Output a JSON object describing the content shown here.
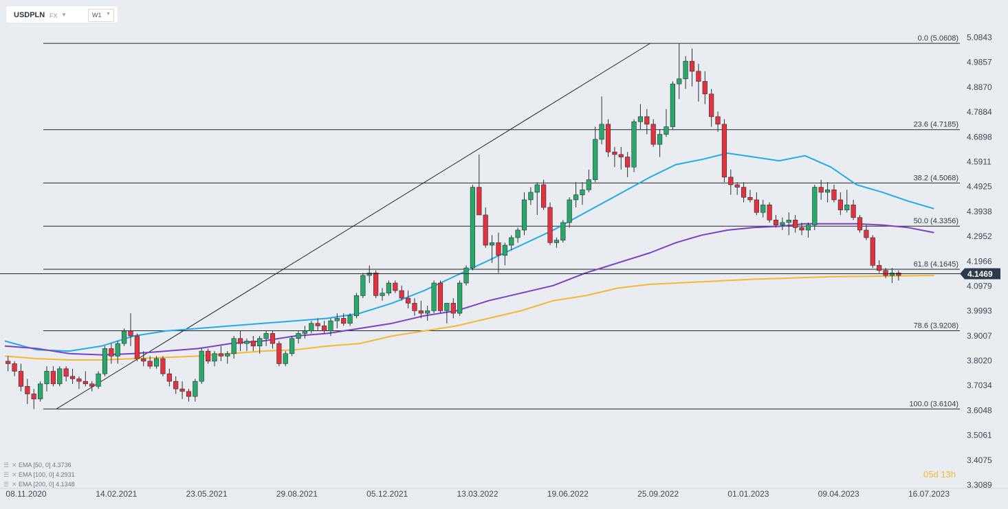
{
  "header": {
    "symbol": "USDPLN",
    "market": "FX",
    "timeframe": "W1"
  },
  "timer": {
    "value": "05d 13h"
  },
  "indicators": [
    {
      "label": "EMA [50,  0]",
      "value": "4.3736",
      "color": "#22a9e8"
    },
    {
      "label": "EMA [100,  0]",
      "value": "4.2931",
      "color": "#7b3fc4"
    },
    {
      "label": "EMA [200,  0]",
      "value": "4.1348",
      "color": "#f5b731"
    }
  ],
  "chart_data": {
    "type": "candlestick",
    "title": "",
    "current_price": {
      "label": "4.1469",
      "value": 4.1469
    },
    "y_axis": {
      "ticks": [
        "5.0843",
        "4.9857",
        "4.8870",
        "4.7884",
        "4.6898",
        "4.5911",
        "4.4925",
        "4.3938",
        "4.2952",
        "4.1966",
        "4.0979",
        "3.9993",
        "3.9007",
        "3.8020",
        "3.7034",
        "3.6048",
        "3.5061",
        "3.4075",
        "3.3089"
      ],
      "ylim": [
        3.3089,
        5.0843
      ]
    },
    "x_axis": {
      "ticks": [
        "08.11.2020",
        "14.02.2021",
        "23.05.2021",
        "29.08.2021",
        "05.12.2021",
        "13.03.2022",
        "19.06.2022",
        "25.09.2022",
        "01.01.2023",
        "09.04.2023",
        "16.07.2023"
      ]
    },
    "fibonacci": {
      "levels": [
        {
          "label": "0.0 (5.0608)",
          "value": 5.0608
        },
        {
          "label": "23.6 (4.7185)",
          "value": 4.7185
        },
        {
          "label": "38.2 (4.5068)",
          "value": 4.5068
        },
        {
          "label": "50.0 (4.3356)",
          "value": 4.3356
        },
        {
          "label": "61.8 (4.1645)",
          "value": 4.1645
        },
        {
          "label": "78.6 (3.9208)",
          "value": 3.9208
        },
        {
          "label": "100.0 (3.6104)",
          "value": 3.6104
        }
      ],
      "trend_line": {
        "from": {
          "week": 8,
          "value": 3.6104
        },
        "to": {
          "week": 100,
          "value": 5.0608
        }
      }
    },
    "candles": [
      [
        3.8,
        3.82,
        3.76,
        3.79
      ],
      [
        3.79,
        3.8,
        3.74,
        3.76
      ],
      [
        3.76,
        3.79,
        3.68,
        3.7
      ],
      [
        3.7,
        3.73,
        3.63,
        3.67
      ],
      [
        3.67,
        3.69,
        3.61,
        3.65
      ],
      [
        3.65,
        3.72,
        3.64,
        3.71
      ],
      [
        3.71,
        3.78,
        3.68,
        3.76
      ],
      [
        3.76,
        3.78,
        3.7,
        3.71
      ],
      [
        3.71,
        3.78,
        3.7,
        3.77
      ],
      [
        3.77,
        3.78,
        3.72,
        3.74
      ],
      [
        3.74,
        3.77,
        3.71,
        3.73
      ],
      [
        3.73,
        3.74,
        3.69,
        3.72
      ],
      [
        3.72,
        3.76,
        3.7,
        3.71
      ],
      [
        3.71,
        3.72,
        3.68,
        3.7
      ],
      [
        3.7,
        3.76,
        3.69,
        3.75
      ],
      [
        3.75,
        3.86,
        3.74,
        3.85
      ],
      [
        3.85,
        3.87,
        3.79,
        3.82
      ],
      [
        3.82,
        3.88,
        3.79,
        3.87
      ],
      [
        3.87,
        3.93,
        3.86,
        3.92
      ],
      [
        3.92,
        3.99,
        3.86,
        3.9
      ],
      [
        3.9,
        3.91,
        3.8,
        3.81
      ],
      [
        3.81,
        3.84,
        3.78,
        3.8
      ],
      [
        3.8,
        3.82,
        3.77,
        3.78
      ],
      [
        3.78,
        3.82,
        3.77,
        3.81
      ],
      [
        3.81,
        3.82,
        3.74,
        3.75
      ],
      [
        3.75,
        3.77,
        3.7,
        3.72
      ],
      [
        3.72,
        3.74,
        3.67,
        3.69
      ],
      [
        3.69,
        3.72,
        3.65,
        3.68
      ],
      [
        3.68,
        3.69,
        3.64,
        3.66
      ],
      [
        3.66,
        3.73,
        3.64,
        3.72
      ],
      [
        3.72,
        3.85,
        3.71,
        3.84
      ],
      [
        3.84,
        3.85,
        3.79,
        3.8
      ],
      [
        3.8,
        3.84,
        3.78,
        3.83
      ],
      [
        3.83,
        3.86,
        3.8,
        3.82
      ],
      [
        3.82,
        3.84,
        3.79,
        3.83
      ],
      [
        3.83,
        3.9,
        3.81,
        3.89
      ],
      [
        3.89,
        3.92,
        3.84,
        3.87
      ],
      [
        3.87,
        3.89,
        3.84,
        3.88
      ],
      [
        3.88,
        3.9,
        3.84,
        3.86
      ],
      [
        3.86,
        3.9,
        3.83,
        3.89
      ],
      [
        3.89,
        3.92,
        3.86,
        3.91
      ],
      [
        3.91,
        3.92,
        3.85,
        3.87
      ],
      [
        3.87,
        3.88,
        3.78,
        3.79
      ],
      [
        3.79,
        3.84,
        3.78,
        3.83
      ],
      [
        3.83,
        3.9,
        3.82,
        3.89
      ],
      [
        3.89,
        3.92,
        3.87,
        3.91
      ],
      [
        3.91,
        3.94,
        3.89,
        3.92
      ],
      [
        3.92,
        3.96,
        3.91,
        3.95
      ],
      [
        3.95,
        3.97,
        3.92,
        3.94
      ],
      [
        3.94,
        3.96,
        3.91,
        3.92
      ],
      [
        3.92,
        3.97,
        3.9,
        3.96
      ],
      [
        3.96,
        3.99,
        3.93,
        3.97
      ],
      [
        3.97,
        3.99,
        3.94,
        3.95
      ],
      [
        3.95,
        3.99,
        3.94,
        3.98
      ],
      [
        3.98,
        4.07,
        3.97,
        4.06
      ],
      [
        4.06,
        4.15,
        4.05,
        4.14
      ],
      [
        4.14,
        4.18,
        4.11,
        4.15
      ],
      [
        4.15,
        4.16,
        4.05,
        4.06
      ],
      [
        4.06,
        4.09,
        4.04,
        4.07
      ],
      [
        4.07,
        4.12,
        4.06,
        4.11
      ],
      [
        4.11,
        4.12,
        4.07,
        4.08
      ],
      [
        4.08,
        4.1,
        4.04,
        4.05
      ],
      [
        4.05,
        4.08,
        4.01,
        4.03
      ],
      [
        4.03,
        4.05,
        3.98,
        4.0
      ],
      [
        4.0,
        4.04,
        3.97,
        3.99
      ],
      [
        3.99,
        4.02,
        3.96,
        4.0
      ],
      [
        4.0,
        4.12,
        3.99,
        4.11
      ],
      [
        4.11,
        4.12,
        3.99,
        4.0
      ],
      [
        4.0,
        4.02,
        3.95,
        4.03
      ],
      [
        4.03,
        4.05,
        3.97,
        3.99
      ],
      [
        3.99,
        4.12,
        3.98,
        4.11
      ],
      [
        4.11,
        4.18,
        4.1,
        4.17
      ],
      [
        4.17,
        4.5,
        4.16,
        4.49
      ],
      [
        4.49,
        4.62,
        4.38,
        4.38
      ],
      [
        4.38,
        4.41,
        4.25,
        4.26
      ],
      [
        4.26,
        4.3,
        4.19,
        4.27
      ],
      [
        4.27,
        4.31,
        4.15,
        4.22
      ],
      [
        4.22,
        4.27,
        4.18,
        4.26
      ],
      [
        4.26,
        4.3,
        4.24,
        4.29
      ],
      [
        4.29,
        4.33,
        4.27,
        4.32
      ],
      [
        4.32,
        4.47,
        4.3,
        4.44
      ],
      [
        4.44,
        4.49,
        4.42,
        4.47
      ],
      [
        4.47,
        4.51,
        4.38,
        4.5
      ],
      [
        4.5,
        4.52,
        4.4,
        4.41
      ],
      [
        4.41,
        4.43,
        4.26,
        4.27
      ],
      [
        4.27,
        4.29,
        4.25,
        4.28
      ],
      [
        4.28,
        4.36,
        4.27,
        4.35
      ],
      [
        4.35,
        4.45,
        4.33,
        4.44
      ],
      [
        4.44,
        4.51,
        4.41,
        4.46
      ],
      [
        4.46,
        4.51,
        4.42,
        4.48
      ],
      [
        4.48,
        4.56,
        4.47,
        4.52
      ],
      [
        4.52,
        4.73,
        4.51,
        4.68
      ],
      [
        4.68,
        4.85,
        4.66,
        4.74
      ],
      [
        4.74,
        4.76,
        4.61,
        4.63
      ],
      [
        4.63,
        4.65,
        4.57,
        4.62
      ],
      [
        4.62,
        4.65,
        4.56,
        4.61
      ],
      [
        4.61,
        4.63,
        4.53,
        4.57
      ],
      [
        4.57,
        4.76,
        4.55,
        4.75
      ],
      [
        4.75,
        4.82,
        4.72,
        4.77
      ],
      [
        4.77,
        4.8,
        4.7,
        4.74
      ],
      [
        4.74,
        4.76,
        4.65,
        4.66
      ],
      [
        4.66,
        4.72,
        4.61,
        4.7
      ],
      [
        4.7,
        4.8,
        4.69,
        4.73
      ],
      [
        4.73,
        4.91,
        4.72,
        4.9
      ],
      [
        4.9,
        5.06,
        4.84,
        4.92
      ],
      [
        4.92,
        5.01,
        4.88,
        4.99
      ],
      [
        4.99,
        5.04,
        4.89,
        4.95
      ],
      [
        4.95,
        4.98,
        4.83,
        4.91
      ],
      [
        4.91,
        4.95,
        4.82,
        4.86
      ],
      [
        4.86,
        4.88,
        4.73,
        4.77
      ],
      [
        4.77,
        4.79,
        4.71,
        4.74
      ],
      [
        4.74,
        4.76,
        4.51,
        4.53
      ],
      [
        4.53,
        4.56,
        4.46,
        4.5
      ],
      [
        4.5,
        4.51,
        4.46,
        4.49
      ],
      [
        4.49,
        4.51,
        4.43,
        4.45
      ],
      [
        4.45,
        4.48,
        4.43,
        4.44
      ],
      [
        4.44,
        4.47,
        4.38,
        4.39
      ],
      [
        4.39,
        4.44,
        4.37,
        4.42
      ],
      [
        4.42,
        4.43,
        4.35,
        4.36
      ],
      [
        4.36,
        4.38,
        4.33,
        4.34
      ],
      [
        4.34,
        4.37,
        4.32,
        4.35
      ],
      [
        4.35,
        4.39,
        4.3,
        4.36
      ],
      [
        4.36,
        4.38,
        4.31,
        4.33
      ],
      [
        4.33,
        4.35,
        4.3,
        4.32
      ],
      [
        4.32,
        4.35,
        4.29,
        4.34
      ],
      [
        4.34,
        4.5,
        4.32,
        4.49
      ],
      [
        4.49,
        4.52,
        4.44,
        4.47
      ],
      [
        4.47,
        4.51,
        4.43,
        4.48
      ],
      [
        4.48,
        4.5,
        4.43,
        4.44
      ],
      [
        4.44,
        4.47,
        4.38,
        4.4
      ],
      [
        4.4,
        4.48,
        4.39,
        4.42
      ],
      [
        4.42,
        4.44,
        4.36,
        4.37
      ],
      [
        4.37,
        4.38,
        4.31,
        4.32
      ],
      [
        4.32,
        4.34,
        4.28,
        4.29
      ],
      [
        4.29,
        4.3,
        4.17,
        4.18
      ],
      [
        4.18,
        4.2,
        4.15,
        4.16
      ],
      [
        4.16,
        4.17,
        4.13,
        4.14
      ],
      [
        4.14,
        4.17,
        4.11,
        4.15
      ],
      [
        4.15,
        4.16,
        4.12,
        4.14
      ]
    ],
    "series": [
      {
        "name": "EMA [50,  0]",
        "color": "#22a9e8",
        "start_week": 0,
        "values": [
          3.88,
          3.845,
          3.84,
          3.86,
          3.9,
          3.92,
          3.93,
          3.94,
          3.95,
          3.96,
          3.97,
          3.99,
          4.03,
          4.08,
          4.14,
          4.2,
          4.26,
          4.32,
          4.39,
          4.46,
          4.53,
          4.58,
          4.6,
          4.625,
          4.61,
          4.595,
          4.615,
          4.57,
          4.5,
          4.47,
          4.435,
          4.405
        ]
      },
      {
        "name": "EMA [100,  0]",
        "color": "#7b3fc4",
        "start_week": 0,
        "values": [
          3.86,
          3.85,
          3.83,
          3.825,
          3.83,
          3.84,
          3.85,
          3.87,
          3.88,
          3.9,
          3.91,
          3.93,
          3.95,
          3.98,
          4.0,
          4.04,
          4.07,
          4.1,
          4.15,
          4.19,
          4.23,
          4.27,
          4.3,
          4.32,
          4.33,
          4.335,
          4.345,
          4.345,
          4.345,
          4.34,
          4.33,
          4.31
        ]
      },
      {
        "name": "EMA [200,  0]",
        "color": "#f5b731",
        "start_week": 0,
        "values": [
          3.82,
          3.81,
          3.805,
          3.805,
          3.81,
          3.815,
          3.82,
          3.83,
          3.84,
          3.845,
          3.86,
          3.87,
          3.9,
          3.92,
          3.94,
          3.97,
          4.0,
          4.04,
          4.06,
          4.09,
          4.105,
          4.115,
          4.125,
          4.135,
          4.14
        ]
      }
    ],
    "ema_knots_weeks": {
      "EMA [50,  0]": [
        0,
        5,
        10,
        15,
        20,
        25,
        30,
        35,
        40,
        45,
        50,
        55,
        60,
        65,
        70,
        75,
        80,
        85,
        90,
        95,
        100,
        104,
        108,
        112,
        116,
        120,
        124,
        128,
        132,
        136,
        140,
        144
      ],
      "EMA [100,  0]": [
        0,
        5,
        10,
        15,
        20,
        25,
        30,
        35,
        40,
        45,
        50,
        55,
        60,
        65,
        70,
        75,
        80,
        85,
        90,
        95,
        100,
        104,
        108,
        112,
        116,
        120,
        124,
        128,
        132,
        136,
        140,
        144
      ],
      "EMA [200,  0]": [
        0,
        5,
        10,
        15,
        20,
        25,
        30,
        35,
        40,
        45,
        50,
        55,
        60,
        65,
        70,
        75,
        80,
        85,
        90,
        95,
        100,
        108,
        116,
        128,
        144
      ]
    }
  }
}
